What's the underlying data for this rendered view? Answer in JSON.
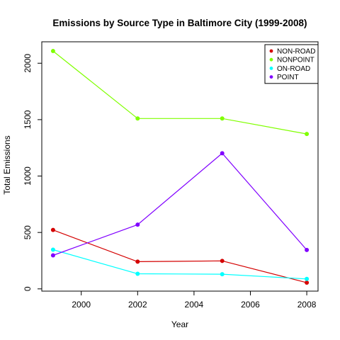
{
  "chart_data": {
    "type": "line",
    "title": "Emissions by Source Type in Baltimore City (1999-2008)",
    "xlabel": "Year",
    "ylabel": "Total Emissions",
    "x": [
      1999,
      2002,
      2005,
      2008
    ],
    "xlim": [
      1998.6,
      2008.4
    ],
    "ylim": [
      -20,
      2190
    ],
    "xticks": [
      2000,
      2002,
      2004,
      2006,
      2008
    ],
    "yticks": [
      0,
      500,
      1000,
      1500,
      2000
    ],
    "grid": false,
    "legend_position": "top-right",
    "series": [
      {
        "name": "NON-ROAD",
        "color": "#d40000",
        "values": [
          522,
          241,
          248,
          55
        ]
      },
      {
        "name": "NONPOINT",
        "color": "#80ff00",
        "values": [
          2108,
          1510,
          1510,
          1373
        ]
      },
      {
        "name": "ON-ROAD",
        "color": "#00ffff",
        "values": [
          347,
          134,
          130,
          88
        ]
      },
      {
        "name": "POINT",
        "color": "#8000ff",
        "values": [
          297,
          569,
          1202,
          345
        ]
      }
    ]
  }
}
